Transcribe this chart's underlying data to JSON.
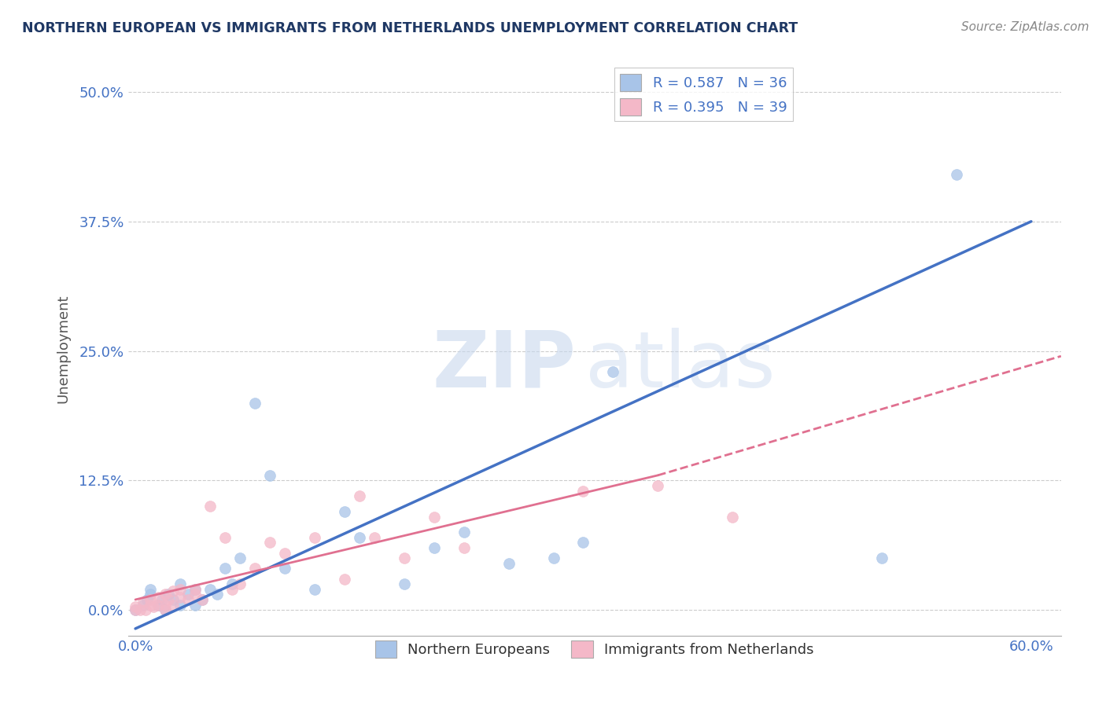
{
  "title": "NORTHERN EUROPEAN VS IMMIGRANTS FROM NETHERLANDS UNEMPLOYMENT CORRELATION CHART",
  "source": "Source: ZipAtlas.com",
  "ylabel": "Unemployment",
  "ytick_values": [
    0.0,
    0.125,
    0.25,
    0.375,
    0.5
  ],
  "xtick_values": [
    0.0,
    0.2,
    0.4,
    0.6
  ],
  "xlim": [
    -0.005,
    0.62
  ],
  "ylim": [
    -0.025,
    0.53
  ],
  "legend1_label": "R = 0.587   N = 36",
  "legend2_label": "R = 0.395   N = 39",
  "legend_label1_short": "Northern Europeans",
  "legend_label2_short": "Immigrants from Netherlands",
  "blue_color": "#4472C4",
  "pink_solid_color": "#E07090",
  "pink_dash_color": "#E07090",
  "blue_scatter_color": "#A8C4E8",
  "pink_scatter_color": "#F4B8C8",
  "title_color": "#1F3864",
  "axis_label_color": "#4472C4",
  "watermark_zip": "ZIP",
  "watermark_atlas": "atlas",
  "blue_scatter": {
    "x": [
      0.0,
      0.005,
      0.008,
      0.01,
      0.01,
      0.015,
      0.018,
      0.02,
      0.022,
      0.025,
      0.03,
      0.03,
      0.035,
      0.04,
      0.04,
      0.045,
      0.05,
      0.055,
      0.06,
      0.065,
      0.07,
      0.08,
      0.09,
      0.1,
      0.12,
      0.14,
      0.15,
      0.18,
      0.2,
      0.22,
      0.25,
      0.28,
      0.3,
      0.32,
      0.5,
      0.55
    ],
    "y": [
      0.0,
      0.005,
      0.01,
      0.015,
      0.02,
      0.005,
      0.01,
      0.0,
      0.015,
      0.01,
      0.005,
      0.025,
      0.015,
      0.005,
      0.02,
      0.01,
      0.02,
      0.015,
      0.04,
      0.025,
      0.05,
      0.2,
      0.13,
      0.04,
      0.02,
      0.095,
      0.07,
      0.025,
      0.06,
      0.075,
      0.045,
      0.05,
      0.065,
      0.23,
      0.05,
      0.42
    ]
  },
  "pink_scatter": {
    "x": [
      0.0,
      0.0,
      0.003,
      0.005,
      0.007,
      0.01,
      0.01,
      0.012,
      0.015,
      0.015,
      0.02,
      0.02,
      0.02,
      0.022,
      0.025,
      0.025,
      0.03,
      0.03,
      0.035,
      0.04,
      0.04,
      0.045,
      0.05,
      0.06,
      0.065,
      0.07,
      0.08,
      0.09,
      0.1,
      0.12,
      0.14,
      0.15,
      0.16,
      0.18,
      0.2,
      0.22,
      0.3,
      0.35,
      0.4
    ],
    "y": [
      0.0,
      0.003,
      0.0,
      0.008,
      0.0,
      0.005,
      0.01,
      0.003,
      0.005,
      0.012,
      0.0,
      0.005,
      0.015,
      0.01,
      0.005,
      0.018,
      0.012,
      0.02,
      0.01,
      0.015,
      0.02,
      0.01,
      0.1,
      0.07,
      0.02,
      0.025,
      0.04,
      0.065,
      0.055,
      0.07,
      0.03,
      0.11,
      0.07,
      0.05,
      0.09,
      0.06,
      0.115,
      0.12,
      0.09
    ]
  },
  "blue_line": {
    "x0": 0.0,
    "y0": -0.018,
    "x1": 0.6,
    "y1": 0.375
  },
  "pink_line_solid": {
    "x0": 0.0,
    "y0": 0.01,
    "x1": 0.35,
    "y1": 0.13
  },
  "pink_line_dashed": {
    "x0": 0.35,
    "y0": 0.13,
    "x1": 0.62,
    "y1": 0.245
  }
}
